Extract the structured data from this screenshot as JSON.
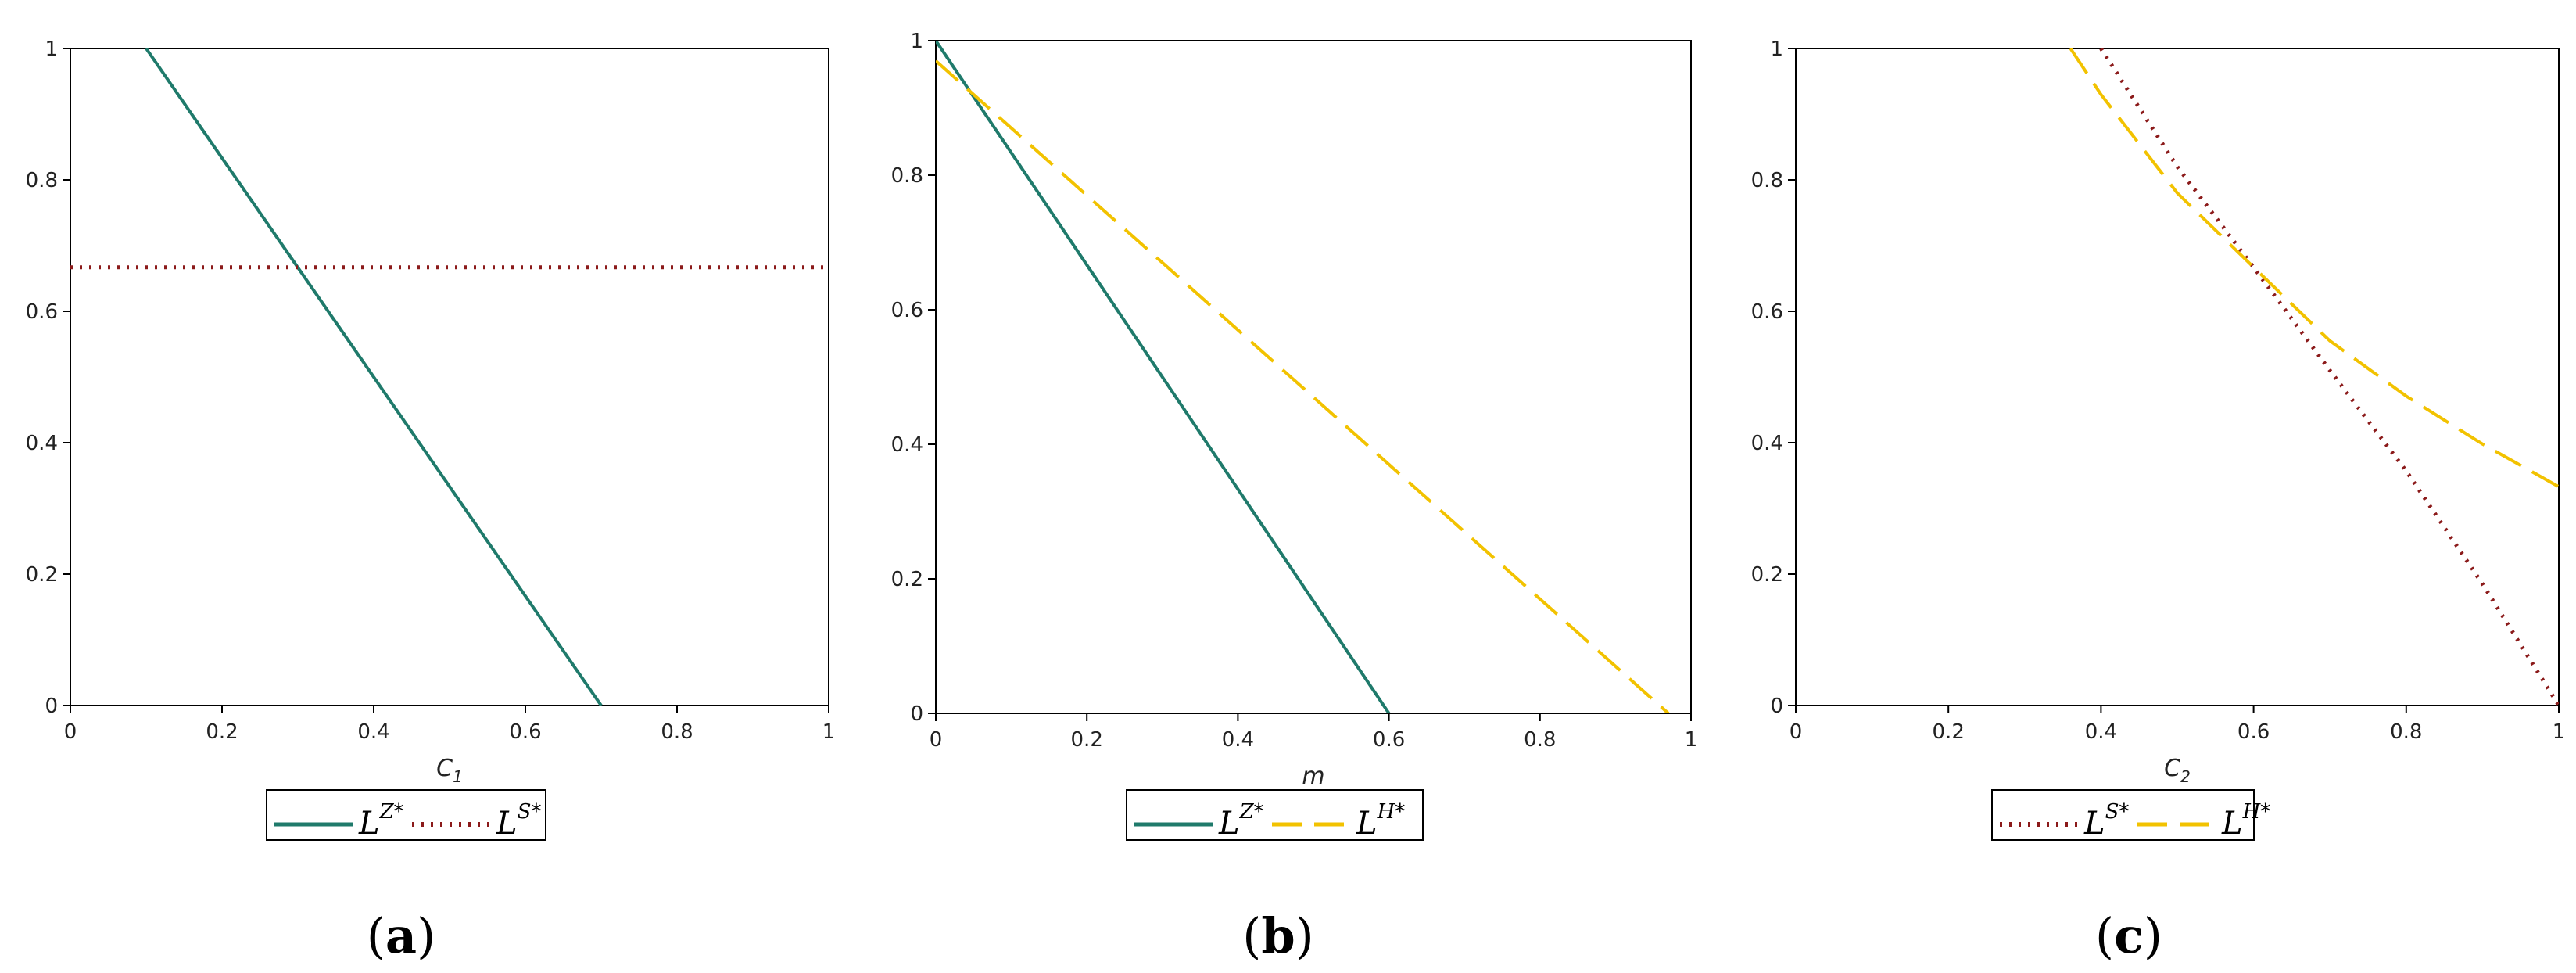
{
  "colors": {
    "teal": "#1f7a6b",
    "maroon": "#8b1a1a",
    "gold": "#f2c200",
    "axis": "#000000"
  },
  "chart_data": [
    {
      "type": "line",
      "xlim": [
        0,
        1
      ],
      "ylim": [
        0,
        1
      ],
      "xticks": [
        "0",
        "0.2",
        "0.4",
        "0.6",
        "0.8",
        "1"
      ],
      "yticks": [
        "0",
        "0.2",
        "0.4",
        "0.6",
        "0.8",
        "1"
      ],
      "xlabel": {
        "base": "C",
        "sub": "1"
      },
      "ylabel": "",
      "grid": false,
      "legend_position": "bottom",
      "panel_label": {
        "open": "(",
        "letter": "a",
        "close": ")"
      },
      "series": [
        {
          "name": {
            "base": "L",
            "sup": "Z*"
          },
          "style": "solid",
          "color": "teal",
          "x": [
            0.1,
            0.7
          ],
          "y": [
            1.0,
            0.0
          ]
        },
        {
          "name": {
            "base": "L",
            "sup": "S*"
          },
          "style": "dotted",
          "color": "maroon",
          "x": [
            0.0,
            1.0
          ],
          "y": [
            0.667,
            0.667
          ]
        }
      ]
    },
    {
      "type": "line",
      "xlim": [
        0,
        1
      ],
      "ylim": [
        0,
        1
      ],
      "xticks": [
        "0",
        "0.2",
        "0.4",
        "0.6",
        "0.8",
        "1"
      ],
      "yticks": [
        "0",
        "0.2",
        "0.4",
        "0.6",
        "0.8",
        "1"
      ],
      "xlabel": {
        "base": "m",
        "sub": ""
      },
      "ylabel": "",
      "grid": false,
      "legend_position": "bottom",
      "panel_label": {
        "open": "(",
        "letter": "b",
        "close": ")"
      },
      "series": [
        {
          "name": {
            "base": "L",
            "sup": "Z*"
          },
          "style": "solid",
          "color": "teal",
          "x": [
            0.0,
            0.6
          ],
          "y": [
            1.0,
            0.0
          ]
        },
        {
          "name": {
            "base": "L",
            "sup": "H*"
          },
          "style": "dashed",
          "color": "gold",
          "x": [
            0.0,
            0.97
          ],
          "y": [
            0.97,
            0.0
          ]
        }
      ]
    },
    {
      "type": "line",
      "xlim": [
        0,
        1
      ],
      "ylim": [
        0,
        1
      ],
      "xticks": [
        "0",
        "0.2",
        "0.4",
        "0.6",
        "0.8",
        "1"
      ],
      "yticks": [
        "0",
        "0.2",
        "0.4",
        "0.6",
        "0.8",
        "1"
      ],
      "xlabel": {
        "base": "C",
        "sub": "2"
      },
      "ylabel": "",
      "grid": false,
      "legend_position": "bottom",
      "panel_label": {
        "open": "(",
        "letter": "c",
        "close": ")"
      },
      "series": [
        {
          "name": {
            "base": "L",
            "sup": "S*"
          },
          "style": "dotted",
          "color": "maroon",
          "x": [
            0.4,
            0.5,
            0.6,
            0.7,
            0.8,
            0.9,
            1.0
          ],
          "y": [
            1.0,
            0.82,
            0.667,
            0.51,
            0.357,
            0.185,
            0.0
          ]
        },
        {
          "name": {
            "base": "L",
            "sup": "H*"
          },
          "style": "dashed",
          "color": "gold",
          "x": [
            0.36,
            0.4,
            0.5,
            0.6,
            0.7,
            0.8,
            0.9,
            1.0
          ],
          "y": [
            1.0,
            0.93,
            0.78,
            0.667,
            0.555,
            0.471,
            0.398,
            0.333
          ]
        }
      ]
    }
  ]
}
